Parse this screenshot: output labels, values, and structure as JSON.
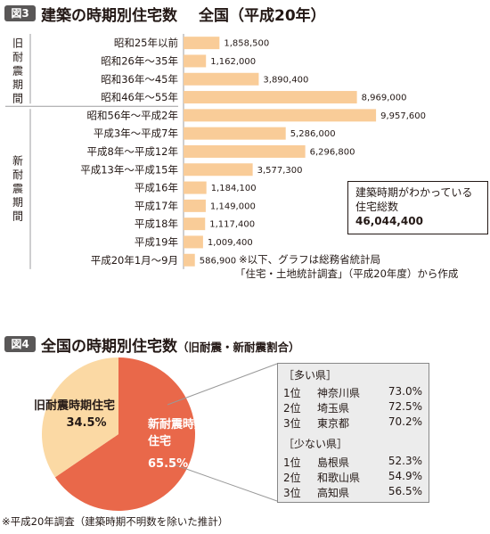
{
  "figure3": {
    "badge": "図3",
    "title": "建築の時期別住宅数",
    "subtitle": "全国（平成20年）",
    "group_old": "旧耐震期間",
    "group_new": "新耐震期間",
    "total_box": {
      "line1": "建築時期がわかっている",
      "line2": "住宅総数",
      "value": "46,044,400"
    },
    "source_line1": "※以下、グラフは総務省統計局",
    "source_line2": "「住宅・土地統計調査」（平成20年度）から作成"
  },
  "figure4": {
    "badge": "図4",
    "title": "全国の時期別住宅数",
    "subtitle": "（旧耐震・新耐震割合）",
    "ranking": {
      "many_header": "［多い県］",
      "many": [
        {
          "rank": "1位",
          "pref": "神奈川県",
          "pct": "73.0%"
        },
        {
          "rank": "2位",
          "pref": "埼玉県",
          "pct": "72.5%"
        },
        {
          "rank": "3位",
          "pref": "東京都",
          "pct": "70.2%"
        }
      ],
      "few_header": "［少ない県］",
      "few": [
        {
          "rank": "1位",
          "pref": "島根県",
          "pct": "52.3%"
        },
        {
          "rank": "2位",
          "pref": "和歌山県",
          "pct": "54.9%"
        },
        {
          "rank": "3位",
          "pref": "高知県",
          "pct": "56.5%"
        }
      ]
    },
    "footnote": "※平成20年調査（建築時期不明数を除いた推計）"
  },
  "colors": {
    "bar": "#f9cc98",
    "pie_old": "#fbd9a4",
    "pie_new": "#e9684a",
    "badge": "#595757",
    "ranking_bg": "#ececec"
  },
  "chart_data": [
    {
      "type": "bar",
      "orientation": "horizontal",
      "categories": [
        "昭和25年以前",
        "昭和26年〜35年",
        "昭和36年〜45年",
        "昭和46年〜55年",
        "昭和56年〜平成2年",
        "平成3年〜平成7年",
        "平成8年〜平成12年",
        "平成13年〜平成15年",
        "平成16年",
        "平成17年",
        "平成18年",
        "平成19年",
        "平成20年1月〜9月"
      ],
      "values": [
        1858500,
        1162000,
        3890400,
        8969000,
        9957600,
        5286000,
        6296800,
        3577300,
        1184100,
        1149000,
        1117400,
        1009400,
        586900
      ],
      "value_labels": [
        "1,858,500",
        "1,162,000",
        "3,890,400",
        "8,969,000",
        "9,957,600",
        "5,286,000",
        "6,296,800",
        "3,577,300",
        "1,184,100",
        "1,149,000",
        "1,117,400",
        "1,009,400",
        "586,900"
      ],
      "groups": [
        {
          "name": "旧耐震期間",
          "from": 0,
          "to": 3
        },
        {
          "name": "新耐震期間",
          "from": 4,
          "to": 12
        }
      ],
      "xlim": [
        0,
        10000000
      ],
      "grid": false
    },
    {
      "type": "pie",
      "slices": [
        {
          "label_line1": "旧耐震時期住宅",
          "label_line2": "",
          "pct_text": "34.5%",
          "value": 34.5
        },
        {
          "label_line1": "新耐震時期",
          "label_line2": "住宅",
          "pct_text": "65.5%",
          "value": 65.5
        }
      ]
    }
  ]
}
